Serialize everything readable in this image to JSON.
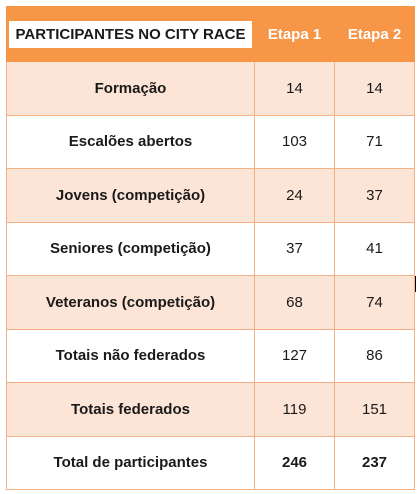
{
  "table": {
    "header": {
      "title": "PARTICIPANTES NO CITY RACE",
      "col1": "Etapa 1",
      "col2": "Etapa 2"
    },
    "rows": [
      {
        "label": "Formação",
        "etapa1": "14",
        "etapa2": "14"
      },
      {
        "label": "Escalões abertos",
        "etapa1": "103",
        "etapa2": "71"
      },
      {
        "label": "Jovens (competição)",
        "etapa1": "24",
        "etapa2": "37"
      },
      {
        "label": "Seniores (competição)",
        "etapa1": "37",
        "etapa2": "41"
      },
      {
        "label": "Veteranos (competição)",
        "etapa1": "68",
        "etapa2": "74"
      },
      {
        "label": "Totais não federados",
        "etapa1": "127",
        "etapa2": "86"
      },
      {
        "label": "Totais federados",
        "etapa1": "119",
        "etapa2": "151"
      },
      {
        "label": "Total de participantes",
        "etapa1": "246",
        "etapa2": "237"
      }
    ]
  },
  "colors": {
    "header_bg": "#f79646",
    "shade_row_bg": "#fce4d6",
    "border": "#f4b183"
  }
}
